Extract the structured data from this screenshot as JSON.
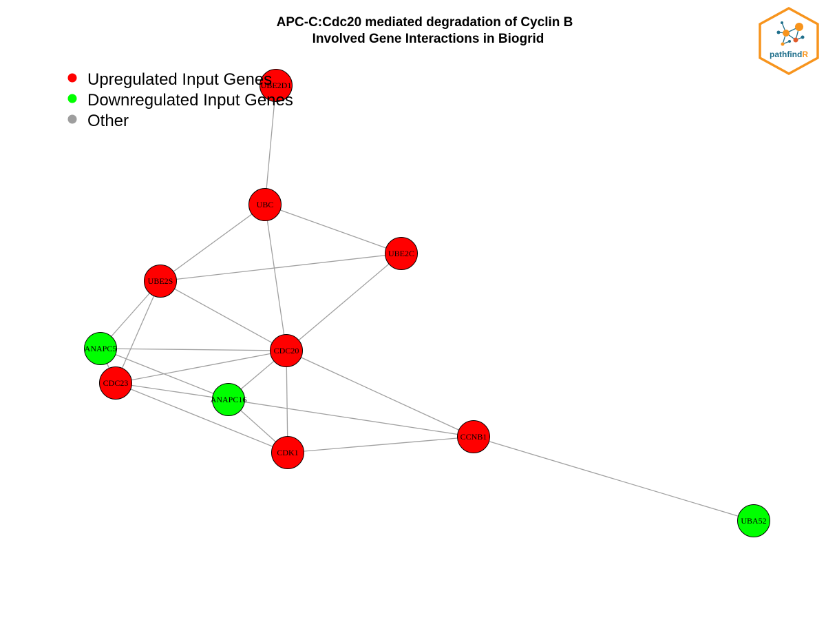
{
  "title_line1": "APC-C:Cdc20 mediated degradation of Cyclin B",
  "title_line2": "Involved Gene Interactions in Biogrid",
  "legend": [
    {
      "label": "Upregulated Input Genes",
      "color": "#ff0000"
    },
    {
      "label": "Downregulated Input Genes",
      "color": "#00ff00"
    },
    {
      "label": "Other",
      "color": "#9e9e9e"
    }
  ],
  "logo": {
    "text_main": "pathfind",
    "text_accent": "R",
    "border_color": "#f7941d",
    "text_color": "#1f6f8b"
  },
  "colors": {
    "up": "#ff0000",
    "down": "#00ff00",
    "other": "#9e9e9e",
    "edge": "#a0a0a0"
  },
  "nodes": [
    {
      "id": "UBE2D1",
      "group": "up"
    },
    {
      "id": "UBC",
      "group": "up"
    },
    {
      "id": "UBE2C",
      "group": "up"
    },
    {
      "id": "UBE2S",
      "group": "up"
    },
    {
      "id": "ANAPC5",
      "group": "down"
    },
    {
      "id": "CDC20",
      "group": "up"
    },
    {
      "id": "CDC23",
      "group": "up"
    },
    {
      "id": "ANAPC16",
      "group": "down"
    },
    {
      "id": "CDK1",
      "group": "up"
    },
    {
      "id": "CCNB1",
      "group": "up"
    },
    {
      "id": "UBA52",
      "group": "down"
    }
  ],
  "edges": [
    [
      "UBE2D1",
      "UBC"
    ],
    [
      "UBC",
      "UBE2C"
    ],
    [
      "UBC",
      "UBE2S"
    ],
    [
      "UBC",
      "CDC20"
    ],
    [
      "UBE2S",
      "UBE2C"
    ],
    [
      "UBE2S",
      "CDC20"
    ],
    [
      "UBE2S",
      "ANAPC5"
    ],
    [
      "UBE2S",
      "CDC23"
    ],
    [
      "UBE2C",
      "CDC20"
    ],
    [
      "ANAPC5",
      "CDC20"
    ],
    [
      "ANAPC5",
      "CDC23"
    ],
    [
      "ANAPC5",
      "ANAPC16"
    ],
    [
      "CDC23",
      "CDC20"
    ],
    [
      "CDC23",
      "ANAPC16"
    ],
    [
      "CDC23",
      "CDK1"
    ],
    [
      "CDC20",
      "ANAPC16"
    ],
    [
      "CDC20",
      "CDK1"
    ],
    [
      "CDC20",
      "CCNB1"
    ],
    [
      "ANAPC16",
      "CDK1"
    ],
    [
      "ANAPC16",
      "CCNB1"
    ],
    [
      "CDK1",
      "CCNB1"
    ],
    [
      "CCNB1",
      "UBA52"
    ]
  ]
}
